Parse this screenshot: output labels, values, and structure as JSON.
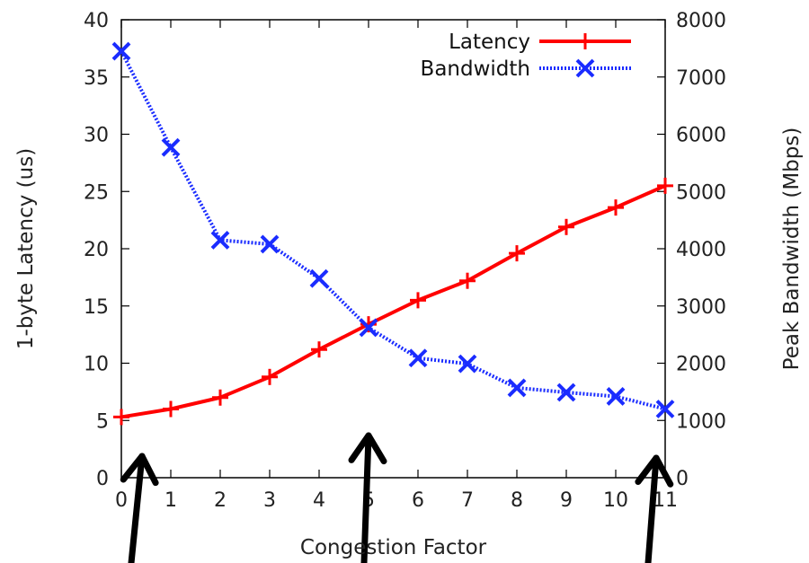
{
  "chart_data": {
    "type": "line",
    "xlabel": "Congestion Factor",
    "ylabel": "1-byte Latency (us)",
    "y2label": "Peak Bandwidth (Mbps)",
    "x": [
      0,
      1,
      2,
      3,
      4,
      5,
      6,
      7,
      8,
      9,
      10,
      11
    ],
    "xlim": [
      0,
      11
    ],
    "ylim": [
      0,
      40
    ],
    "y2lim": [
      0,
      8000
    ],
    "xticks": [
      "0",
      "1",
      "2",
      "3",
      "4",
      "5",
      "6",
      "7",
      "8",
      "9",
      "10",
      "11"
    ],
    "yticks": [
      "0",
      "5",
      "10",
      "15",
      "20",
      "25",
      "30",
      "35",
      "40"
    ],
    "y2ticks": [
      "0",
      "1000",
      "2000",
      "3000",
      "4000",
      "5000",
      "6000",
      "7000",
      "8000"
    ],
    "grid": false,
    "legend_position": "top-right",
    "series": [
      {
        "name": "Latency",
        "axis": "left",
        "color": "#ff0000",
        "marker": "plus",
        "line_style": "solid",
        "values": [
          5.3,
          6.0,
          7.0,
          8.8,
          11.2,
          13.4,
          15.5,
          17.2,
          19.6,
          21.9,
          23.6,
          25.5
        ]
      },
      {
        "name": "Bandwidth",
        "axis": "right",
        "color": "#1a2cff",
        "marker": "x",
        "line_style": "dotted",
        "values": [
          7450,
          5770,
          4150,
          4080,
          3480,
          2620,
          2090,
          1990,
          1570,
          1490,
          1420,
          1200
        ]
      }
    ],
    "annotations": [
      {
        "type": "arrow",
        "points_to_x": 0.4
      },
      {
        "type": "arrow",
        "points_to_x": 5.0
      },
      {
        "type": "arrow",
        "points_to_x": 10.9
      }
    ]
  }
}
